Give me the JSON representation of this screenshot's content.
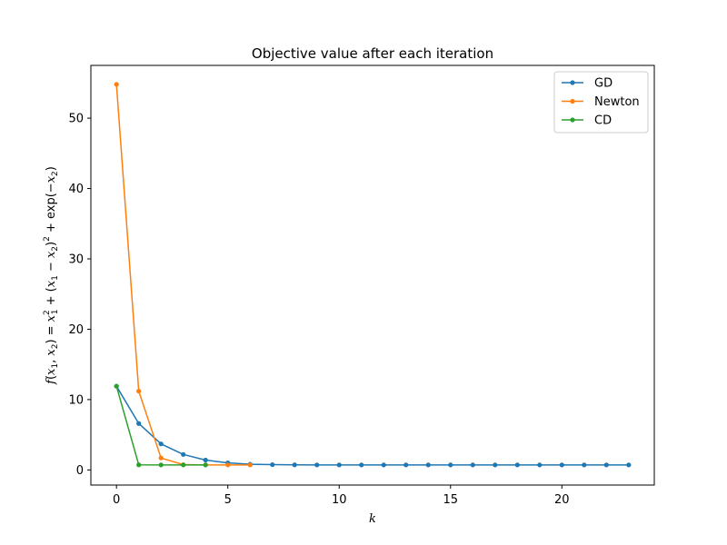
{
  "chart_data": {
    "type": "line",
    "title": "Objective value after each iteration",
    "xlabel": "k",
    "ylabel": "f(x1, x2) = x1^2 + (x1 − x2)^2 + exp(−x2)",
    "xlim": [
      -1.15,
      24.15
    ],
    "ylim": [
      -2.15,
      57.5
    ],
    "xticks": [
      0,
      5,
      10,
      15,
      20
    ],
    "yticks": [
      0,
      10,
      20,
      30,
      40,
      50
    ],
    "grid": false,
    "legend_position": "top-right",
    "series": [
      {
        "name": "GD",
        "color": "#1f77b4",
        "x": [
          0,
          1,
          2,
          3,
          4,
          5,
          6,
          7,
          8,
          9,
          10,
          11,
          12,
          13,
          14,
          15,
          16,
          17,
          18,
          19,
          20,
          21,
          22,
          23
        ],
        "values": [
          11.9,
          6.6,
          3.7,
          2.2,
          1.4,
          1.0,
          0.8,
          0.75,
          0.72,
          0.71,
          0.71,
          0.71,
          0.71,
          0.71,
          0.71,
          0.71,
          0.71,
          0.71,
          0.71,
          0.71,
          0.71,
          0.71,
          0.71,
          0.71
        ]
      },
      {
        "name": "Newton",
        "color": "#ff7f0e",
        "x": [
          0,
          1,
          2,
          3,
          4,
          5,
          6
        ],
        "values": [
          54.8,
          11.2,
          1.7,
          0.75,
          0.71,
          0.71,
          0.71
        ]
      },
      {
        "name": "CD",
        "color": "#2ca02c",
        "x": [
          0,
          1,
          2,
          3,
          4
        ],
        "values": [
          11.9,
          0.72,
          0.71,
          0.71,
          0.71
        ]
      }
    ]
  }
}
